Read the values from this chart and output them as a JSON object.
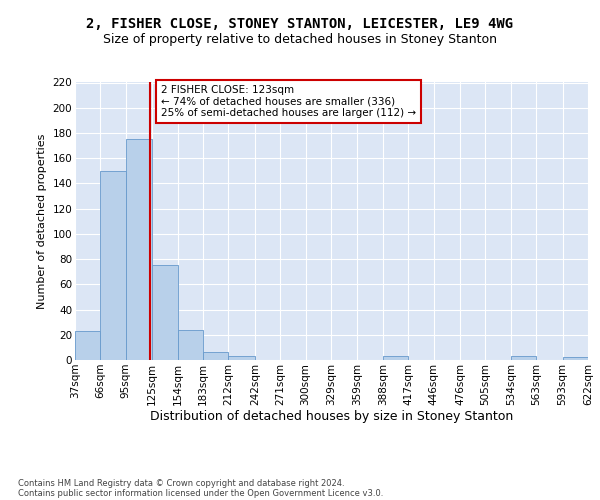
{
  "title1": "2, FISHER CLOSE, STONEY STANTON, LEICESTER, LE9 4WG",
  "title2": "Size of property relative to detached houses in Stoney Stanton",
  "xlabel": "Distribution of detached houses by size in Stoney Stanton",
  "ylabel": "Number of detached properties",
  "footnote1": "Contains HM Land Registry data © Crown copyright and database right 2024.",
  "footnote2": "Contains public sector information licensed under the Open Government Licence v3.0.",
  "bin_edges": [
    37,
    66,
    95,
    125,
    154,
    183,
    212,
    242,
    271,
    300,
    329,
    359,
    388,
    417,
    446,
    476,
    505,
    534,
    563,
    593,
    622
  ],
  "bar_heights": [
    23,
    150,
    175,
    75,
    24,
    6,
    3,
    0,
    0,
    0,
    0,
    0,
    3,
    0,
    0,
    0,
    0,
    3,
    0,
    2
  ],
  "bar_color": "#b8d0ea",
  "bar_edge_color": "#6699cc",
  "vline_x": 123,
  "vline_color": "#cc0000",
  "annotation_line1": "2 FISHER CLOSE: 123sqm",
  "annotation_line2": "← 74% of detached houses are smaller (336)",
  "annotation_line3": "25% of semi-detached houses are larger (112) →",
  "annotation_box_facecolor": "#ffffff",
  "annotation_box_edgecolor": "#cc0000",
  "ylim": [
    0,
    220
  ],
  "yticks": [
    0,
    20,
    40,
    60,
    80,
    100,
    120,
    140,
    160,
    180,
    200,
    220
  ],
  "bg_color": "#dce6f5",
  "grid_color": "#ffffff",
  "title1_fontsize": 10,
  "title2_fontsize": 9,
  "xlabel_fontsize": 9,
  "ylabel_fontsize": 8,
  "tick_fontsize": 7.5,
  "annot_fontsize": 7.5,
  "footnote_fontsize": 6
}
